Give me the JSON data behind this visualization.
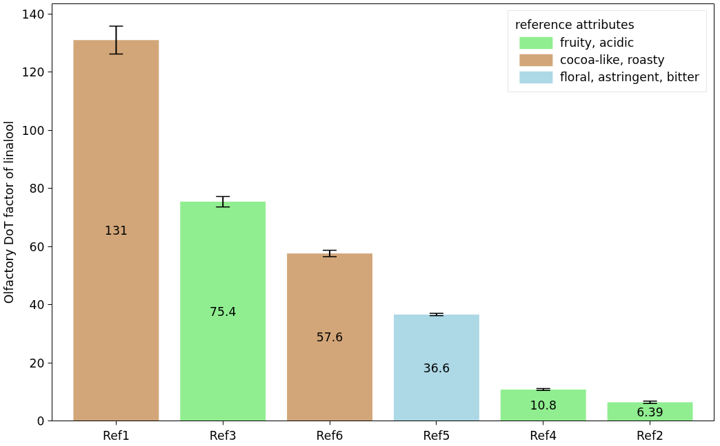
{
  "chart_data": {
    "type": "bar",
    "ylabel": "Olfactory DoT factor of linalool",
    "legend_title": "reference attributes",
    "categories": [
      "Ref1",
      "Ref3",
      "Ref6",
      "Ref5",
      "Ref4",
      "Ref2"
    ],
    "series": [
      {
        "name": "fruity, acidic",
        "color": "#90ee90",
        "values": [
          null,
          75.4,
          null,
          null,
          10.8,
          6.39
        ],
        "errors": [
          null,
          1.8,
          null,
          null,
          0.3,
          0.4
        ]
      },
      {
        "name": "cocoa-like, roasty",
        "color": "#d2a679",
        "values": [
          131,
          null,
          57.6,
          null,
          null,
          null
        ],
        "errors": [
          4.8,
          null,
          1.1,
          null,
          null,
          null
        ]
      },
      {
        "name": "floral, astringent, bitter",
        "color": "#add8e6",
        "values": [
          null,
          null,
          null,
          36.6,
          null,
          null
        ],
        "errors": [
          null,
          null,
          null,
          0.4,
          null,
          null
        ]
      }
    ],
    "data_labels": true,
    "ylim": [
      0,
      143.5
    ],
    "yticks": [
      0,
      20,
      40,
      60,
      80,
      100,
      120,
      140
    ],
    "grid": false,
    "legend": "top right"
  }
}
